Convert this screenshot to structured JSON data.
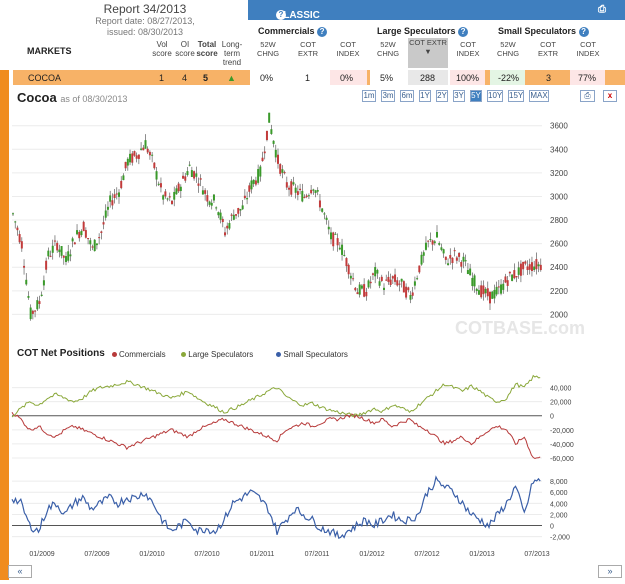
{
  "report": {
    "title": "Report 34/2013",
    "date": "Report date: 08/27/2013,",
    "issued": "issued: 08/30/2013"
  },
  "table": {
    "markets_label": "MARKETS",
    "vol_score": "Vol score",
    "oi_score": "OI score",
    "total_score": "Total score",
    "trend": "Long-term trend",
    "classic_label": "CLASSIC DATA – FUTURES ONLY",
    "groups": [
      "Commercials",
      "Large Speculators",
      "Small Speculators"
    ],
    "cols": [
      "52W CHNG",
      "COT EXTR",
      "COT INDEX"
    ],
    "row": {
      "name": "COCOA",
      "vol": "1",
      "oi": "4",
      "total": "5",
      "com_chng": "0%",
      "com_extr": "1",
      "com_index": "0%",
      "lg_chng": "5%",
      "lg_extr": "288",
      "lg_index": "100%",
      "sm_chng": "-22%",
      "sm_extr": "3",
      "sm_index": "77%"
    }
  },
  "chart_title": "Cocoa",
  "chart_asof": "as of 08/30/2013",
  "ranges": [
    "1m",
    "3m",
    "6m",
    "1Y",
    "2Y",
    "3Y",
    "5Y",
    "10Y",
    "15Y",
    "MAX"
  ],
  "active_range": "5Y",
  "watermark": "COTBASE.com",
  "cot_title": "COT Net Positions",
  "legend": [
    {
      "name": "Commercials",
      "color": "#b73a3a"
    },
    {
      "name": "Large Speculators",
      "color": "#8aa83a"
    },
    {
      "name": "Small Speculators",
      "color": "#3a5fa8"
    }
  ],
  "x_ticks": [
    "01/2009",
    "07/2009",
    "01/2010",
    "07/2010",
    "01/2011",
    "07/2011",
    "01/2012",
    "07/2012",
    "01/2013",
    "07/2013"
  ],
  "chart_data": [
    {
      "type": "line",
      "title": "Cocoa",
      "ylim": [
        1800,
        3750
      ],
      "yticks": [
        2000,
        2200,
        2400,
        2600,
        2800,
        3000,
        3200,
        3400,
        3600
      ],
      "x": [
        "2008-09",
        "2008-10",
        "2008-11",
        "2008-12",
        "2009-01",
        "2009-02",
        "2009-03",
        "2009-04",
        "2009-05",
        "2009-06",
        "2009-07",
        "2009-08",
        "2009-09",
        "2009-10",
        "2009-11",
        "2009-12",
        "2010-01",
        "2010-02",
        "2010-03",
        "2010-04",
        "2010-05",
        "2010-06",
        "2010-07",
        "2010-08",
        "2010-09",
        "2010-10",
        "2010-11",
        "2010-12",
        "2011-01",
        "2011-02",
        "2011-03",
        "2011-04",
        "2011-05",
        "2011-06",
        "2011-07",
        "2011-08",
        "2011-09",
        "2011-10",
        "2011-11",
        "2011-12",
        "2012-01",
        "2012-02",
        "2012-03",
        "2012-04",
        "2012-05",
        "2012-06",
        "2012-07",
        "2012-08",
        "2012-09",
        "2012-10",
        "2012-11",
        "2012-12",
        "2013-01",
        "2013-02",
        "2013-03",
        "2013-04",
        "2013-05",
        "2013-06",
        "2013-07",
        "2013-08"
      ],
      "series": [
        {
          "values": [
            2850,
            2600,
            2000,
            2100,
            2500,
            2600,
            2450,
            2650,
            2750,
            2550,
            2700,
            2950,
            3050,
            3300,
            3350,
            3450,
            3250,
            3000,
            2950,
            3100,
            3250,
            3150,
            3000,
            2950,
            2700,
            2850,
            2900,
            3100,
            3200,
            3650,
            3300,
            3100,
            3050,
            3000,
            3100,
            2900,
            2650,
            2600,
            2400,
            2200,
            2200,
            2350,
            2250,
            2300,
            2250,
            2150,
            2400,
            2600,
            2650,
            2450,
            2500,
            2450,
            2300,
            2200,
            2150,
            2200,
            2300,
            2350,
            2400,
            2420
          ]
        }
      ]
    },
    {
      "type": "line",
      "title": "COT Net Positions",
      "ylim": [
        -70000,
        65000
      ],
      "yticks": [
        -60000,
        -40000,
        -20000,
        0,
        20000,
        40000
      ],
      "x": [
        "2008-09",
        "2008-10",
        "2008-11",
        "2008-12",
        "2009-01",
        "2009-02",
        "2009-03",
        "2009-04",
        "2009-05",
        "2009-06",
        "2009-07",
        "2009-08",
        "2009-09",
        "2009-10",
        "2009-11",
        "2009-12",
        "2010-01",
        "2010-02",
        "2010-03",
        "2010-04",
        "2010-05",
        "2010-06",
        "2010-07",
        "2010-08",
        "2010-09",
        "2010-10",
        "2010-11",
        "2010-12",
        "2011-01",
        "2011-02",
        "2011-03",
        "2011-04",
        "2011-05",
        "2011-06",
        "2011-07",
        "2011-08",
        "2011-09",
        "2011-10",
        "2011-11",
        "2011-12",
        "2012-01",
        "2012-02",
        "2012-03",
        "2012-04",
        "2012-05",
        "2012-06",
        "2012-07",
        "2012-08",
        "2012-09",
        "2012-10",
        "2012-11",
        "2012-12",
        "2013-01",
        "2013-02",
        "2013-03",
        "2013-04",
        "2013-05",
        "2013-06",
        "2013-07",
        "2013-08"
      ],
      "series": [
        {
          "name": "Commercials",
          "values": [
            5000,
            -5000,
            -20000,
            -15000,
            -25000,
            -30000,
            -20000,
            -15000,
            -20000,
            -25000,
            -30000,
            -35000,
            -40000,
            -45000,
            -40000,
            -35000,
            -30000,
            -25000,
            -20000,
            -25000,
            -30000,
            -20000,
            -15000,
            -10000,
            -5000,
            -10000,
            -15000,
            -20000,
            -25000,
            -30000,
            -35000,
            -20000,
            -15000,
            -10000,
            -15000,
            -10000,
            -5000,
            -5000,
            0,
            0,
            -5000,
            -10000,
            -5000,
            -15000,
            -10000,
            -5000,
            -15000,
            -20000,
            -30000,
            -40000,
            -35000,
            -30000,
            -40000,
            -30000,
            -20000,
            -15000,
            -20000,
            -40000,
            -30000,
            -60000
          ]
        },
        {
          "name": "Large Speculators",
          "values": [
            0,
            10000,
            20000,
            15000,
            25000,
            30000,
            25000,
            20000,
            25000,
            35000,
            40000,
            42000,
            45000,
            48000,
            45000,
            40000,
            35000,
            30000,
            25000,
            30000,
            35000,
            25000,
            18000,
            12000,
            5000,
            10000,
            15000,
            22000,
            28000,
            35000,
            40000,
            28000,
            20000,
            15000,
            18000,
            12000,
            8000,
            5000,
            2000,
            0,
            5000,
            10000,
            6000,
            15000,
            12000,
            5000,
            15000,
            25000,
            35000,
            45000,
            40000,
            35000,
            42000,
            35000,
            25000,
            20000,
            25000,
            45000,
            40000,
            55000
          ]
        },
        {
          "name": "Small Speculators",
          "values": [
            5000,
            4000,
            0,
            -1000,
            3000,
            4000,
            2000,
            4000,
            5000,
            3000,
            4000,
            5000,
            4000,
            5000,
            5000,
            6000,
            4000,
            1000,
            -1000,
            0,
            1000,
            -1000,
            -500,
            -1000,
            1000,
            4000,
            5000,
            6000,
            5000,
            3000,
            -1000,
            1000,
            3000,
            2000,
            1000,
            -500,
            -1000,
            -2000,
            -1000,
            0,
            1000,
            0,
            1000,
            2000,
            1000,
            1000,
            2000,
            6000,
            8000,
            7000,
            6000,
            4000,
            2000,
            1000,
            0,
            2000,
            4000,
            7000,
            2000,
            8000
          ]
        }
      ]
    }
  ]
}
